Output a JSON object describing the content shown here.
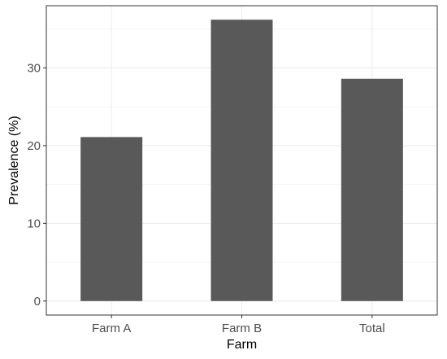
{
  "chart_data": {
    "type": "bar",
    "categories": [
      "Farm A",
      "Farm B",
      "Total"
    ],
    "values": [
      21.1,
      36.2,
      28.6
    ],
    "xlabel": "Farm",
    "ylabel": "Prevalence (%)",
    "ylim": [
      -1.8,
      38
    ],
    "yticks": [
      0,
      10,
      20,
      30
    ],
    "yticks_minor": [
      5,
      15,
      25,
      35
    ],
    "grid": true,
    "legend": "none",
    "colors": {
      "bar": "#595959",
      "grid_major": "#ebebeb",
      "grid_minor": "#f5f5f5",
      "panel_border": "#333333",
      "tick_text": "#4d4d4d"
    }
  }
}
